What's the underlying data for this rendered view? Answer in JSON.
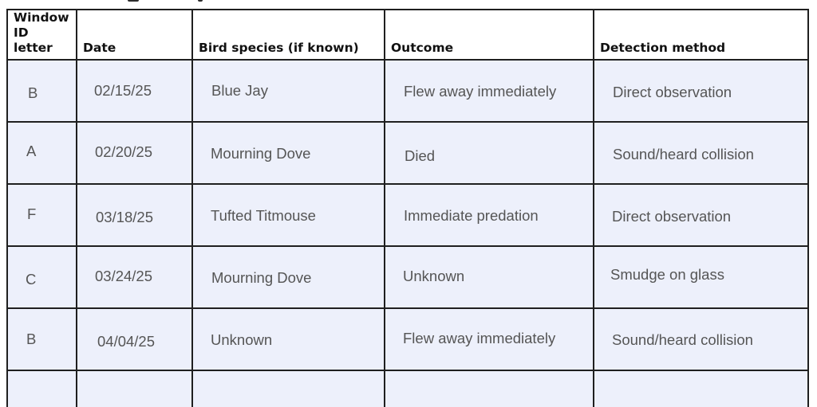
{
  "table": {
    "headers": [
      "Window\nID letter",
      "Date",
      "Bird species (if known)",
      "Outcome",
      "Detection method"
    ],
    "rows": [
      [
        "B",
        "02/15/25",
        "Blue Jay",
        "Flew away immediately",
        "Direct observation"
      ],
      [
        "A",
        "02/20/25",
        "Mourning Dove",
        "Died",
        "Sound/heard collision"
      ],
      [
        "F",
        "03/18/25",
        "Tufted Titmouse",
        "Immediate predation",
        "Direct observation"
      ],
      [
        "C",
        "03/24/25",
        "Mourning Dove",
        "Unknown",
        "Smudge on glass"
      ],
      [
        "B",
        "04/04/25",
        "Unknown",
        "Flew away immediately",
        "Sound/heard collision"
      ],
      [
        "",
        "",
        "",
        "",
        ""
      ]
    ]
  }
}
